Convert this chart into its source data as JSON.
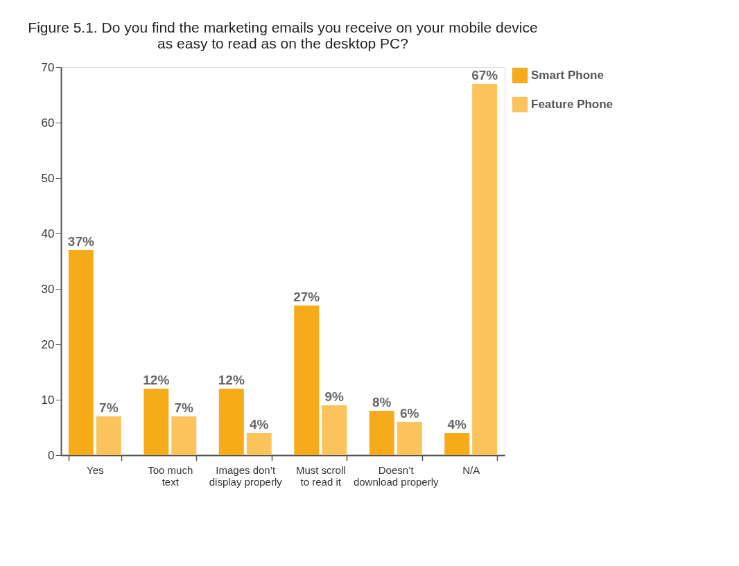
{
  "chart_data": {
    "type": "bar",
    "title": [
      "Figure 5.1. Do you find the marketing emails you receive on your mobile device",
      "as easy to read as on the desktop PC?"
    ],
    "categories": [
      "Yes",
      "Too much\ntext",
      "Images don’t\ndisplay properly",
      "Must scroll\nto read it",
      "Doesn’t\ndownload properly",
      "N/A"
    ],
    "series": [
      {
        "name": "Smart Phone",
        "color": "#f6ab1b",
        "values": [
          37,
          12,
          12,
          27,
          8,
          4
        ],
        "value_labels": [
          "37%",
          "12%",
          "12%",
          "27%",
          "8%",
          "4%"
        ]
      },
      {
        "name": "Feature Phone",
        "color": "#fbc35c",
        "values": [
          7,
          7,
          4,
          9,
          6,
          67
        ],
        "value_labels": [
          "7%",
          "7%",
          "4%",
          "9%",
          "6%",
          "67%"
        ]
      }
    ],
    "ylim": [
      0,
      70
    ],
    "yticks": [
      0,
      10,
      20,
      30,
      40,
      50,
      60,
      70
    ],
    "grid": false,
    "legend": "right"
  }
}
